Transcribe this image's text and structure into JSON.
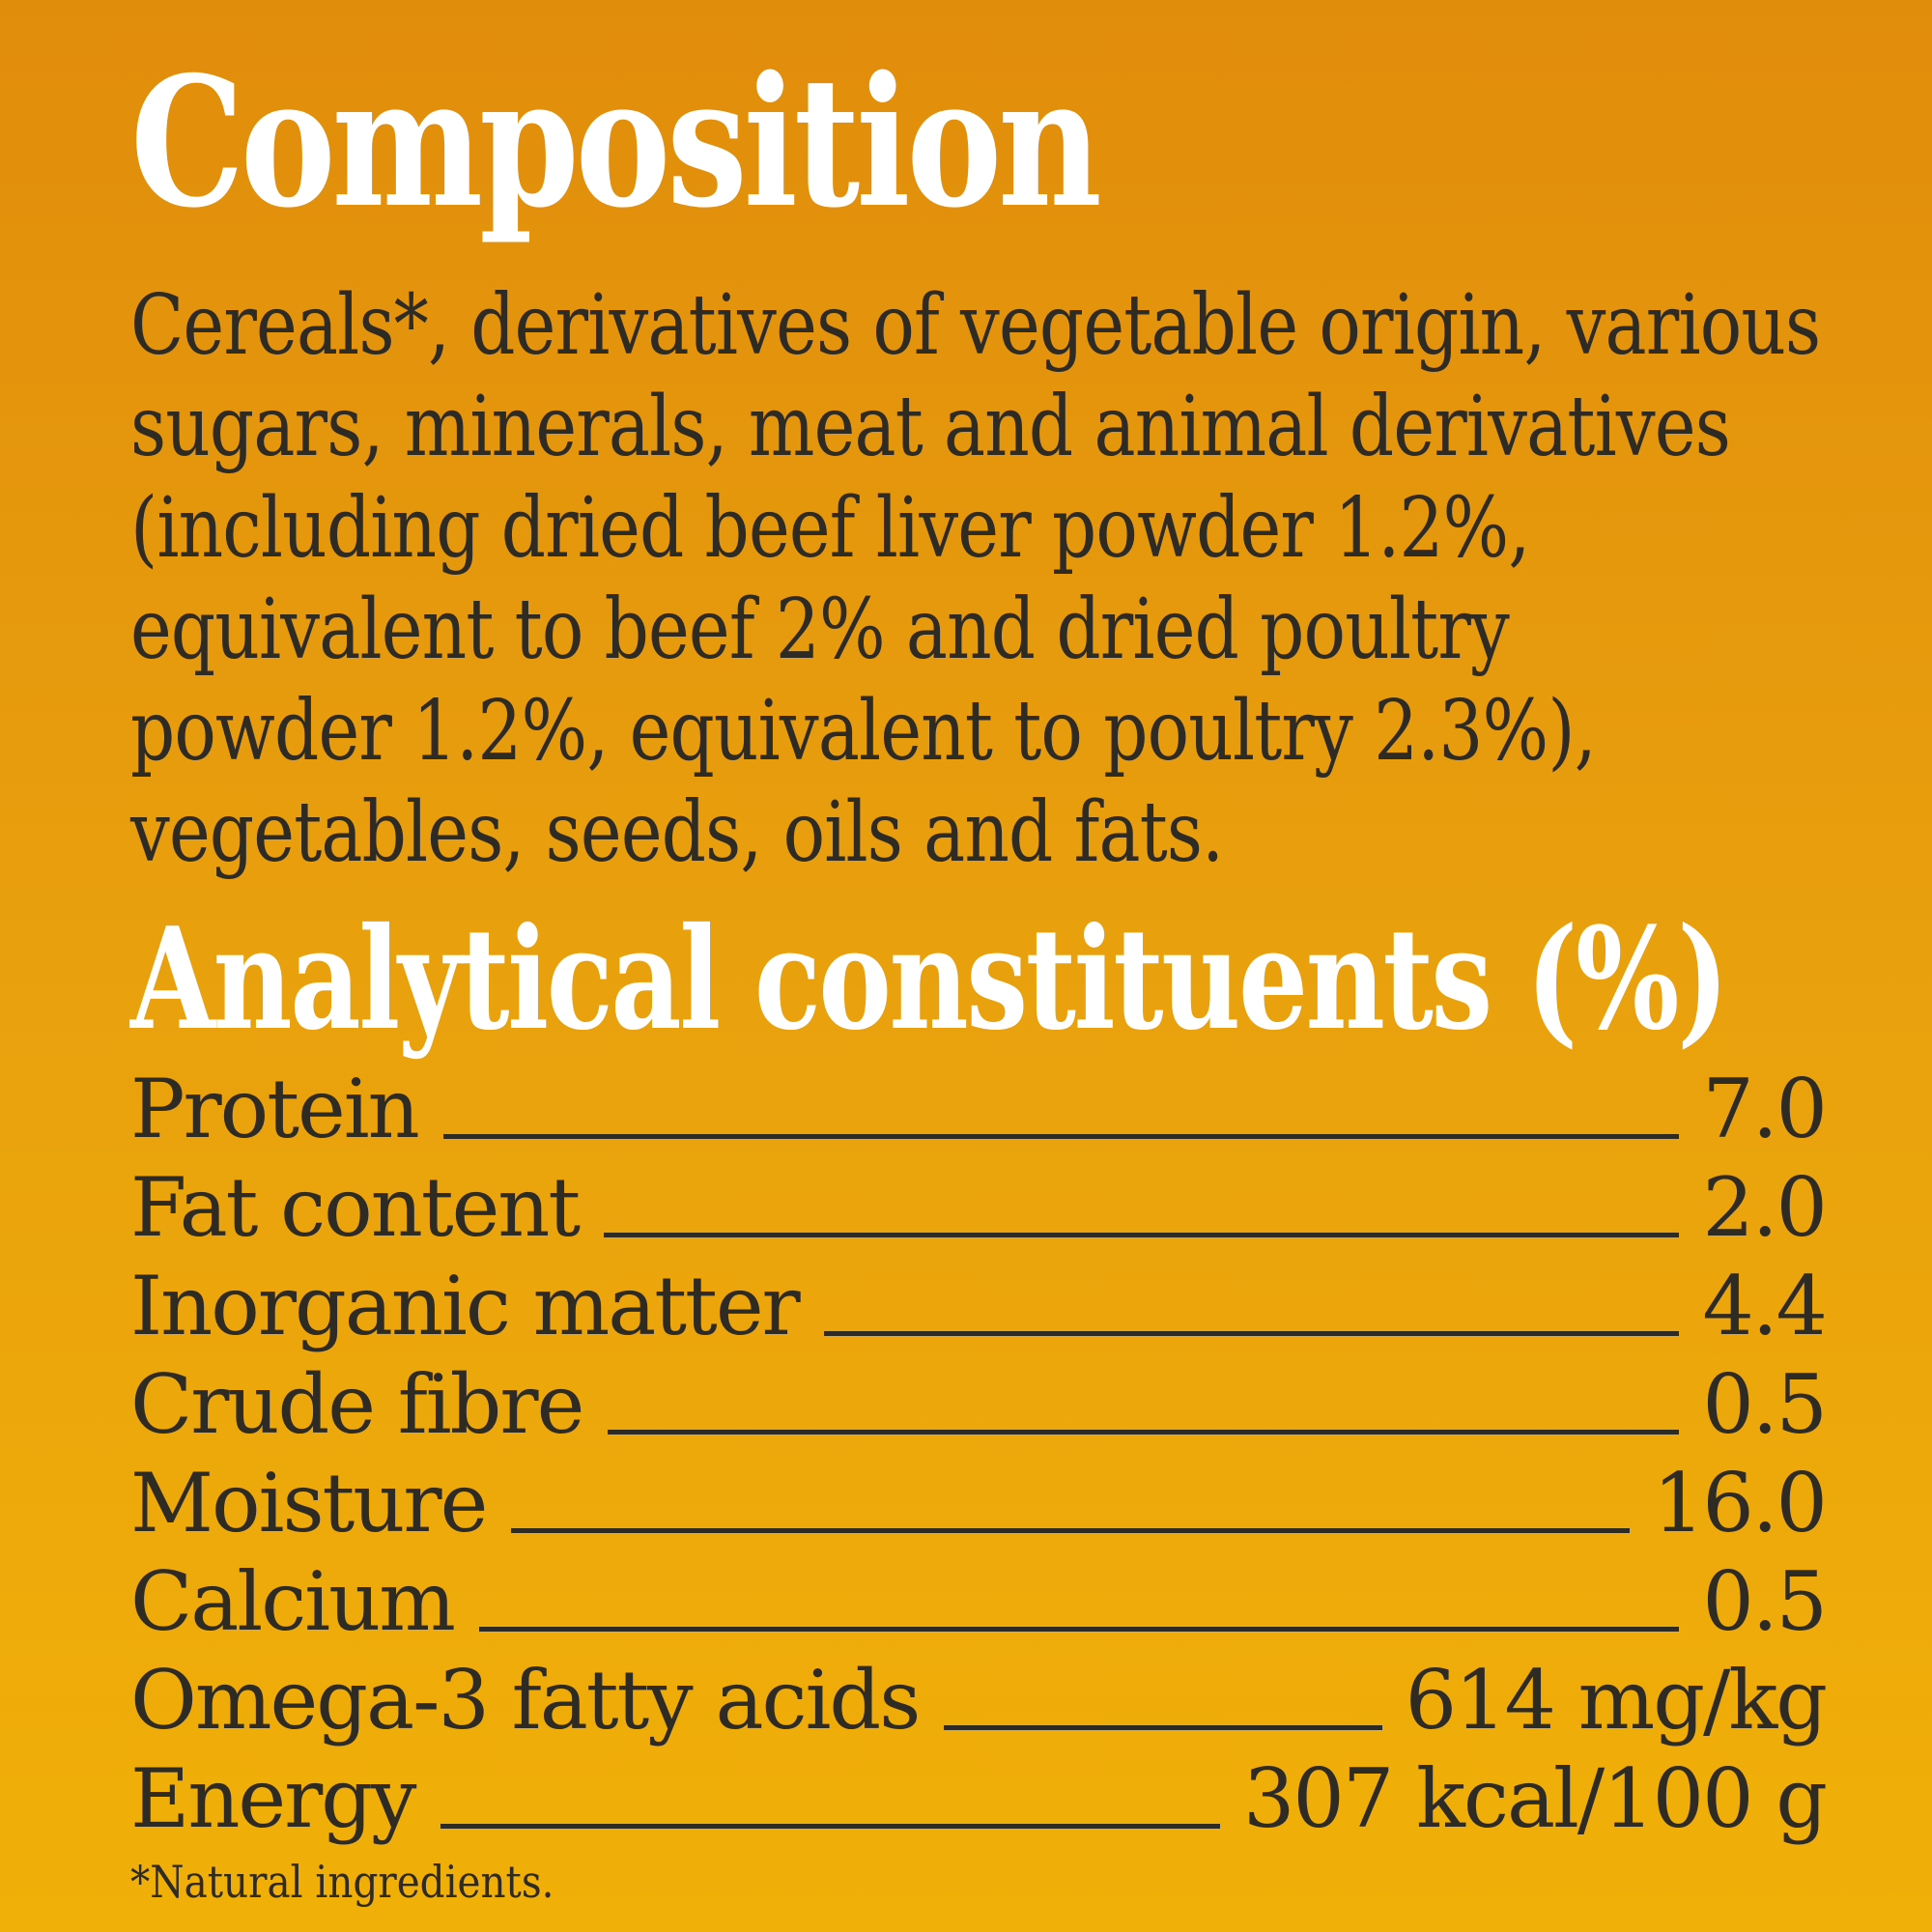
{
  "colors": {
    "background_top": "#E18D0C",
    "background_bottom": "#F1B008",
    "heading_text": "#FFFFFF",
    "body_text": "#2E2B25"
  },
  "composition": {
    "title": "Composition",
    "body_lines": [
      "Cereals*, derivatives of vegetable origin, various",
      "sugars, minerals, meat and animal derivatives",
      "(including dried beef liver powder 1.2%,",
      "equivalent to beef 2% and dried poultry",
      "powder 1.2%, equivalent to poultry 2.3%),",
      "vegetables, seeds, oils and fats."
    ]
  },
  "analytical": {
    "title": "Analytical constituents (%)",
    "rows": [
      {
        "label": "Protein",
        "value": "7.0"
      },
      {
        "label": "Fat content",
        "value": "2.0"
      },
      {
        "label": "Inorganic matter",
        "value": "4.4"
      },
      {
        "label": "Crude fibre",
        "value": "0.5"
      },
      {
        "label": "Moisture",
        "value": "16.0"
      },
      {
        "label": "Calcium",
        "value": "0.5"
      },
      {
        "label": "Omega-3 fatty acids",
        "value": "614 mg/kg"
      },
      {
        "label": "Energy",
        "value": "307 kcal/100 g"
      }
    ]
  },
  "footnote": "*Natural ingredients."
}
